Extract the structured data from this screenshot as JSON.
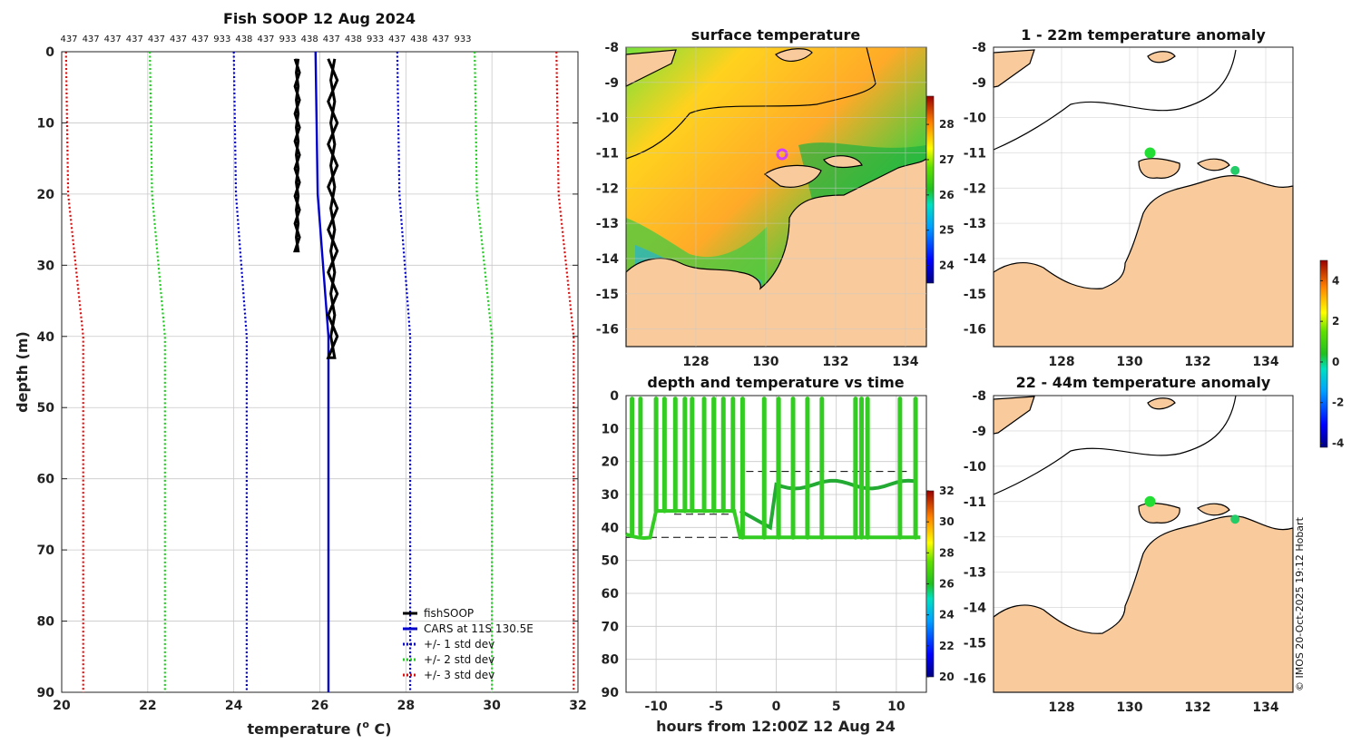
{
  "chart_data": [
    {
      "type": "line",
      "title": "Fish SOOP 12 Aug 2024",
      "top_labels": [
        "437",
        "437",
        "437",
        "437",
        "437",
        "437",
        "437",
        "933",
        "438",
        "437",
        "933",
        "438",
        "437",
        "438",
        "933",
        "437",
        "438",
        "437",
        "933"
      ],
      "xlabel": "temperature (",
      "xlabel_sup": "o",
      "xlabel_tail": " C)",
      "ylabel": "depth (m)",
      "xlim": [
        20,
        32
      ],
      "ylim": [
        0,
        90
      ],
      "x_ticks": [
        20,
        22,
        24,
        26,
        28,
        30,
        32
      ],
      "y_ticks": [
        0,
        10,
        20,
        30,
        40,
        50,
        60,
        70,
        80,
        90
      ],
      "series": [
        {
          "name": "fishSOOP",
          "color": "#000000"
        },
        {
          "name": "CARS at 11S 130.5E",
          "color": "#0000cc",
          "depth": [
            0,
            20,
            40,
            90
          ],
          "temp": [
            25.9,
            25.95,
            26.2,
            26.2
          ]
        },
        {
          "name": "+/- 1 std dev",
          "color": "#0000cc",
          "depth": [
            0,
            20,
            40,
            90
          ],
          "lower": [
            24.0,
            24.05,
            24.3,
            24.3
          ],
          "upper": [
            27.8,
            27.85,
            28.1,
            28.1
          ]
        },
        {
          "name": "+/- 2 std dev",
          "color": "#22cc22",
          "depth": [
            0,
            20,
            40,
            90
          ],
          "lower": [
            22.05,
            22.1,
            22.4,
            22.4
          ],
          "upper": [
            29.6,
            29.65,
            30.0,
            30.0
          ]
        },
        {
          "name": "+/- 3 std dev",
          "color": "#dd1111",
          "depth": [
            0,
            20,
            40,
            90
          ],
          "lower": [
            20.1,
            20.15,
            20.5,
            20.5
          ],
          "upper": [
            31.5,
            31.55,
            31.9,
            31.9
          ]
        }
      ],
      "fish_profiles": [
        {
          "temp_range": [
            25.4,
            25.55
          ],
          "depth_range": [
            1,
            28
          ]
        },
        {
          "temp_range": [
            26.15,
            26.45
          ],
          "depth_range": [
            1,
            43
          ]
        }
      ]
    },
    {
      "type": "heatmap",
      "title": "surface temperature",
      "x_ticks": [
        128,
        130,
        132,
        134
      ],
      "y_ticks": [
        -8,
        -9,
        -10,
        -11,
        -12,
        -13,
        -14,
        -15,
        -16
      ],
      "xlim": [
        126,
        134.6
      ],
      "ylim": [
        -16.5,
        -8
      ],
      "colorbar_ticks": [
        24,
        25,
        26,
        27,
        28
      ],
      "colorbar_range": [
        23.5,
        28.8
      ],
      "marker": {
        "lon": 130.6,
        "lat": -11.0
      }
    },
    {
      "type": "scatter",
      "title": "depth and temperature vs time",
      "xlabel": "hours from 12:00Z 12 Aug 24",
      "xlim": [
        -12.5,
        12.5
      ],
      "ylim": [
        0,
        90
      ],
      "x_ticks": [
        -10,
        -5,
        0,
        5,
        10
      ],
      "y_ticks": [
        0,
        10,
        20,
        30,
        40,
        50,
        60,
        70,
        80,
        90
      ],
      "colorbar_ticks": [
        20,
        22,
        24,
        26,
        28,
        30,
        32
      ],
      "colorbar_range": [
        20,
        32
      ],
      "bottom_depth": 43
    },
    {
      "type": "heatmap",
      "title": "1 - 22m temperature anomaly",
      "x_ticks": [
        128,
        130,
        132,
        134
      ],
      "y_ticks": [
        -8,
        -9,
        -10,
        -11,
        -12,
        -13,
        -14,
        -15,
        -16
      ],
      "points": [
        {
          "lon": 130.6,
          "lat": -11.0
        },
        {
          "lon": 133.1,
          "lat": -11.5
        }
      ],
      "colorbar_ticks": [
        -4,
        -2,
        0,
        2,
        4
      ],
      "colorbar_range": [
        -4.2,
        5.0
      ]
    },
    {
      "type": "heatmap",
      "title": "22 - 44m temperature anomaly",
      "x_ticks": [
        128,
        130,
        132,
        134
      ],
      "y_ticks": [
        -8,
        -9,
        -10,
        -11,
        -12,
        -13,
        -14,
        -15,
        -16
      ],
      "points": [
        {
          "lon": 130.6,
          "lat": -11.0
        },
        {
          "lon": 133.1,
          "lat": -11.5
        }
      ]
    }
  ],
  "footer": "© IMOS 20-Oct-2025 19:12 Hobart"
}
